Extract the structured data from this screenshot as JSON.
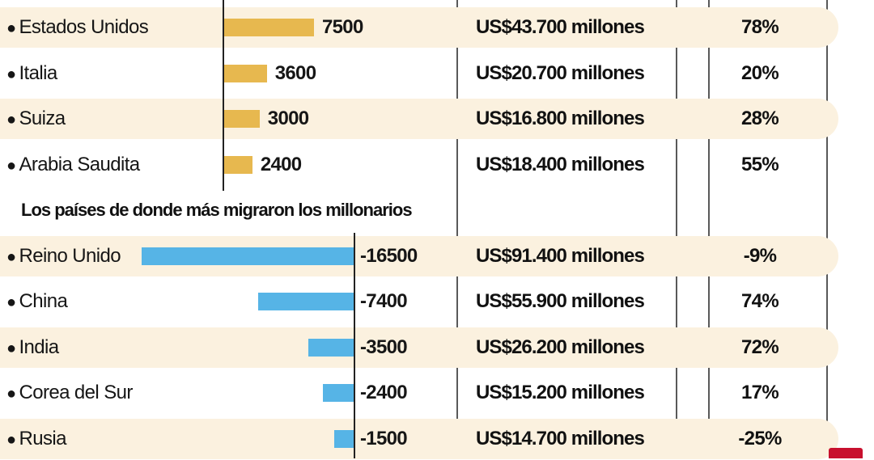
{
  "chart_data": {
    "type": "bar",
    "section_title": "Los países de donde más migraron los millonarios",
    "rows": [
      {
        "country": "Estados Unidos",
        "value": 7500,
        "wealth": "US$43.700 millones",
        "pct": "78%",
        "group": "in"
      },
      {
        "country": "Italia",
        "value": 3600,
        "wealth": "US$20.700 millones",
        "pct": "20%",
        "group": "in"
      },
      {
        "country": "Suiza",
        "value": 3000,
        "wealth": "US$16.800 millones",
        "pct": "28%",
        "group": "in"
      },
      {
        "country": "Arabia Saudita",
        "value": 2400,
        "wealth": "US$18.400 millones",
        "pct": "55%",
        "group": "in"
      },
      {
        "country": "Reino Unido",
        "value": -16500,
        "wealth": "US$91.400 millones",
        "pct": "-9%",
        "group": "out"
      },
      {
        "country": "China",
        "value": -7400,
        "wealth": "US$55.900 millones",
        "pct": "74%",
        "group": "out"
      },
      {
        "country": "India",
        "value": -3500,
        "wealth": "US$26.200 millones",
        "pct": "72%",
        "group": "out"
      },
      {
        "country": "Corea del Sur",
        "value": -2400,
        "wealth": "US$15.200 millones",
        "pct": "17%",
        "group": "out"
      },
      {
        "country": "Rusia",
        "value": -1500,
        "wealth": "US$14.700 millones",
        "pct": "-25%",
        "group": "out"
      }
    ],
    "colors": {
      "positive": "#e7b84f",
      "negative": "#56b4e6",
      "band": "#fbf1df",
      "accent": "#c8102e"
    }
  }
}
